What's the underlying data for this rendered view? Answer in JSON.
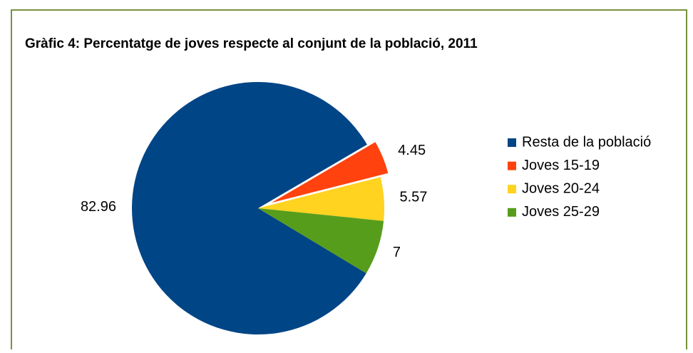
{
  "chart_data": {
    "type": "pie",
    "title": "Gràfic 4: Percentatge de joves respecte al conjunt de la població, 2011",
    "categories": [
      "Resta de la població",
      "Joves 15-19",
      "Joves 20-24",
      "Joves 25-29"
    ],
    "values": [
      82.96,
      4.45,
      5.57,
      7
    ],
    "colors": [
      "#004586",
      "#ff420e",
      "#ffd320",
      "#579d1c"
    ],
    "exploded": [
      false,
      true,
      false,
      false
    ],
    "legend": "right"
  }
}
